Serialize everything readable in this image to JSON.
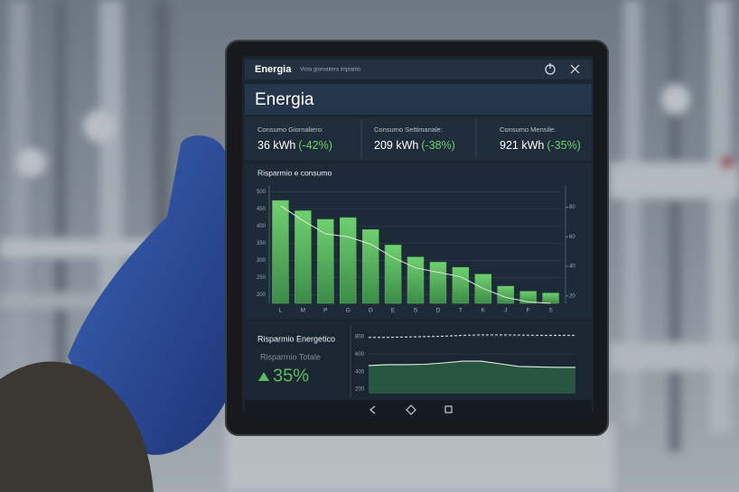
{
  "app_bar": {
    "title": "Energia",
    "subtitle": "Vista giornaliera impianto"
  },
  "header": {
    "title": "Energia"
  },
  "stats": [
    {
      "label": "Consumo Giornaliero:",
      "value": "36 kWh",
      "change": "(-42%)"
    },
    {
      "label": "Consumo Settimanale:",
      "value": "209 kWh",
      "change": "(-38%)"
    },
    {
      "label": "Consumo Mensile:",
      "value": "921 kWh",
      "change": "(-35%)"
    }
  ],
  "chart_data": [
    {
      "type": "bar",
      "title": "Risparmio e consumo",
      "categories": [
        "L",
        "M",
        "P",
        "G",
        "O",
        "E",
        "S",
        "D",
        "T",
        "K",
        "J",
        "F",
        "S"
      ],
      "values": [
        475,
        445,
        420,
        425,
        390,
        345,
        310,
        295,
        280,
        260,
        225,
        210,
        205
      ],
      "color": "#5dbb5d",
      "line": {
        "values": [
          81,
          71,
          62,
          60,
          55,
          46,
          39,
          36,
          33,
          25,
          19,
          16,
          15
        ],
        "color": "#dfe8d8",
        "axis": "y2"
      },
      "ylim": [
        175,
        520
      ],
      "yticks": [
        200,
        250,
        300,
        350,
        400,
        450,
        500
      ],
      "y2lim": [
        15,
        95
      ],
      "y2ticks": [
        20,
        40,
        60,
        80
      ],
      "grid": true
    },
    {
      "type": "line",
      "series": [
        {
          "color": "#d4dadf",
          "values": [
            790,
            790,
            795,
            800,
            805,
            815,
            820,
            820,
            818,
            815,
            815,
            815
          ],
          "dash": true
        },
        {
          "color": "#e4f2e4",
          "values": [
            470,
            480,
            480,
            485,
            500,
            520,
            520,
            490,
            460,
            455,
            450,
            450
          ],
          "area": "#2e6a46"
        }
      ],
      "ylim": [
        150,
        850
      ],
      "yticks": [
        200,
        400,
        600,
        800
      ],
      "grid": true
    }
  ],
  "savings": {
    "title": "Risparmio Energetico",
    "label": "Risparmio Totale",
    "value": "35%"
  }
}
